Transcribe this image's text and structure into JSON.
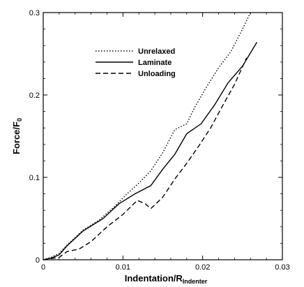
{
  "chart_data": {
    "type": "line",
    "xlabel_main": "Indentation/R",
    "xlabel_sub": "Indenter",
    "ylabel_main": "Force/F",
    "ylabel_sub": "0",
    "xlim": [
      0,
      0.03
    ],
    "ylim": [
      0,
      0.3
    ],
    "x_ticks": [
      {
        "value": 0,
        "label": "0"
      },
      {
        "value": 0.01,
        "label": "0.01"
      },
      {
        "value": 0.02,
        "label": "0.02"
      },
      {
        "value": 0.03,
        "label": "0.03"
      }
    ],
    "y_ticks": [
      {
        "value": 0,
        "label": "0"
      },
      {
        "value": 0.1,
        "label": "0.1"
      },
      {
        "value": 0.2,
        "label": "0.2"
      },
      {
        "value": 0.3,
        "label": "0.3"
      }
    ],
    "grid": false,
    "legend_position": "top-center",
    "series": [
      {
        "name": "Unrelaxed",
        "style": "dotted",
        "color": "#000000",
        "points": [
          [
            0,
            0
          ],
          [
            0.001,
            0.003
          ],
          [
            0.002,
            0.008
          ],
          [
            0.003,
            0.018
          ],
          [
            0.005,
            0.036
          ],
          [
            0.007,
            0.048
          ],
          [
            0.009,
            0.065
          ],
          [
            0.0105,
            0.08
          ],
          [
            0.012,
            0.093
          ],
          [
            0.0135,
            0.108
          ],
          [
            0.015,
            0.13
          ],
          [
            0.0165,
            0.158
          ],
          [
            0.018,
            0.165
          ],
          [
            0.019,
            0.185
          ],
          [
            0.0205,
            0.21
          ],
          [
            0.022,
            0.233
          ],
          [
            0.0235,
            0.252
          ],
          [
            0.025,
            0.28
          ],
          [
            0.026,
            0.3
          ]
        ]
      },
      {
        "name": "Laminate",
        "style": "solid",
        "color": "#000000",
        "points": [
          [
            0,
            0
          ],
          [
            0.001,
            0.002
          ],
          [
            0.002,
            0.006
          ],
          [
            0.003,
            0.017
          ],
          [
            0.005,
            0.035
          ],
          [
            0.0075,
            0.05
          ],
          [
            0.0095,
            0.068
          ],
          [
            0.0115,
            0.08
          ],
          [
            0.0135,
            0.09
          ],
          [
            0.015,
            0.11
          ],
          [
            0.0165,
            0.128
          ],
          [
            0.018,
            0.153
          ],
          [
            0.0198,
            0.165
          ],
          [
            0.0215,
            0.188
          ],
          [
            0.0232,
            0.215
          ],
          [
            0.025,
            0.235
          ],
          [
            0.0268,
            0.264
          ]
        ]
      },
      {
        "name": "Unloading",
        "style": "dashed",
        "color": "#000000",
        "points": [
          [
            0,
            0
          ],
          [
            0.002,
            0.003
          ],
          [
            0.003,
            0.01
          ],
          [
            0.0045,
            0.013
          ],
          [
            0.006,
            0.022
          ],
          [
            0.008,
            0.04
          ],
          [
            0.01,
            0.055
          ],
          [
            0.0118,
            0.072
          ],
          [
            0.0128,
            0.068
          ],
          [
            0.0135,
            0.062
          ],
          [
            0.015,
            0.076
          ],
          [
            0.0165,
            0.098
          ],
          [
            0.018,
            0.117
          ],
          [
            0.0195,
            0.138
          ],
          [
            0.021,
            0.16
          ],
          [
            0.0225,
            0.187
          ],
          [
            0.024,
            0.213
          ],
          [
            0.0255,
            0.245
          ]
        ]
      }
    ]
  }
}
